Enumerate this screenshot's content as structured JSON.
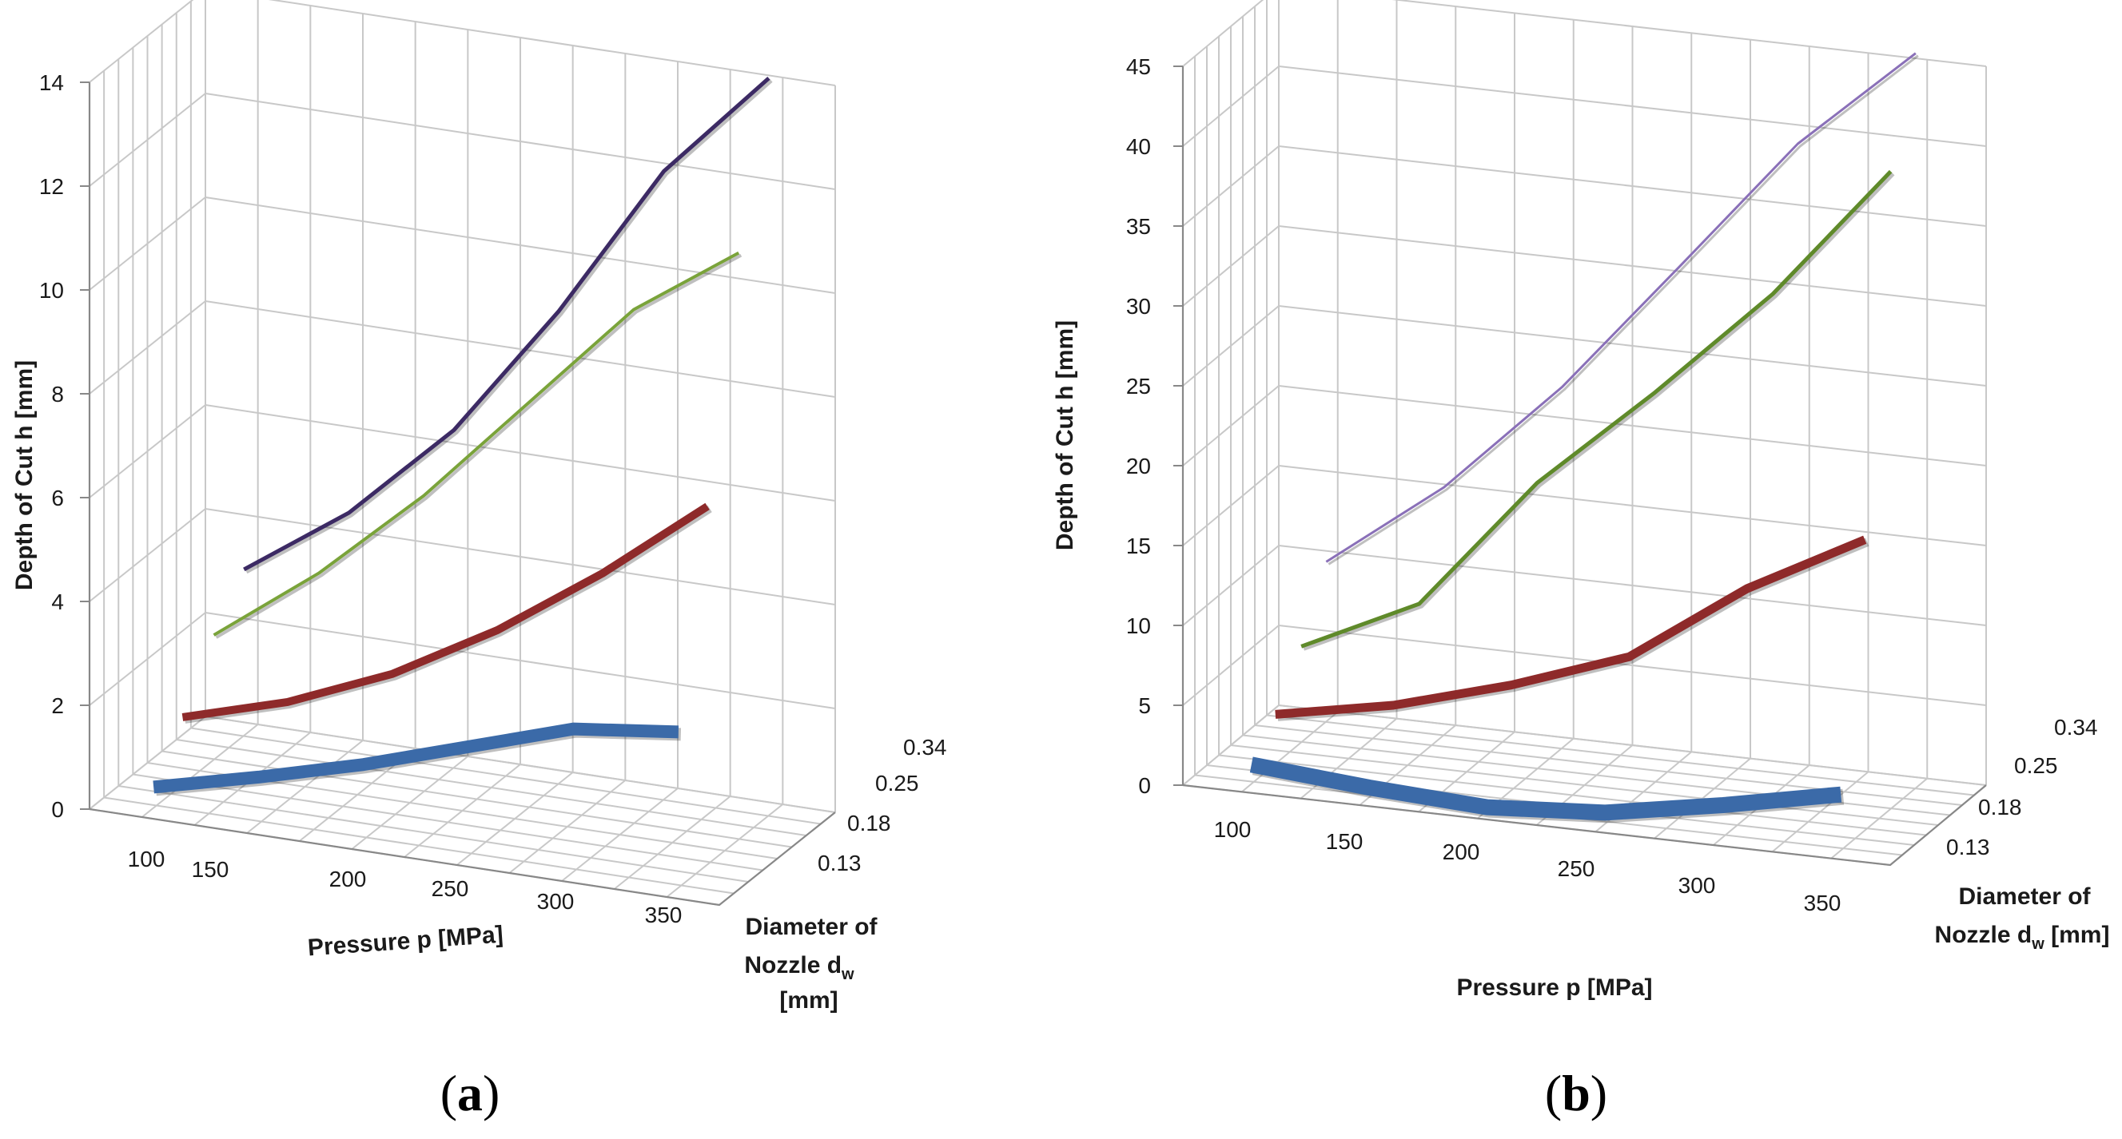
{
  "panels": [
    {
      "label_open": "(",
      "label": "a",
      "label_close": ")"
    },
    {
      "label_open": "(",
      "label": "b",
      "label_close": ")"
    }
  ],
  "chart_data": [
    {
      "type": "line3d",
      "panel": "a",
      "ylabel": "Depth of Cut h [mm]",
      "xlabel": "Pressure p [MPa]",
      "zlabel_line1": "Diameter of",
      "zlabel_line2_main": "Nozzle d",
      "zlabel_line2_sub": "w",
      "zlabel_line3": "[mm]",
      "x_categories": [
        "100",
        "150",
        "200",
        "250",
        "300",
        "350"
      ],
      "z_categories": [
        "0.13",
        "0.18",
        "0.25",
        "0.34"
      ],
      "y_ticks": [
        "0",
        "2",
        "4",
        "6",
        "8",
        "10",
        "12",
        "14"
      ],
      "ylim": [
        0,
        14
      ],
      "series": [
        {
          "name": "0.13",
          "color": "#3b6aa8",
          "width": 16,
          "values": [
            0.4,
            0.9,
            1.45,
            2.1,
            2.75,
            3.0
          ]
        },
        {
          "name": "0.18",
          "color": "#8e2a2a",
          "width": 10,
          "values": [
            1.3,
            1.9,
            2.75,
            3.9,
            5.3,
            6.9
          ]
        },
        {
          "name": "0.25",
          "color": "#7aa33a",
          "width": 4,
          "values": [
            2.4,
            3.9,
            5.7,
            7.8,
            9.9,
            11.3
          ]
        },
        {
          "name": "0.34",
          "color": "#3c2a64",
          "width": 5,
          "values": [
            3.2,
            4.6,
            6.5,
            9.1,
            12.1,
            14.2
          ]
        }
      ]
    },
    {
      "type": "line3d",
      "panel": "b",
      "ylabel": "Depth of Cut h [mm]",
      "xlabel": "Pressure p [MPa]",
      "zlabel_line1": "Diameter of",
      "zlabel_line2_main": "Nozzle d",
      "zlabel_line2_sub": "w",
      "zlabel_line2_tail": " [mm]",
      "x_categories": [
        "100",
        "150",
        "200",
        "250",
        "300",
        "350"
      ],
      "z_categories": [
        "0.13",
        "0.18",
        "0.25",
        "0.34"
      ],
      "y_ticks": [
        "0",
        "5",
        "10",
        "15",
        "20",
        "25",
        "30",
        "35",
        "40",
        "45"
      ],
      "ylim": [
        0,
        45
      ],
      "series": [
        {
          "name": "0.13",
          "color": "#3b6aa8",
          "width": 20,
          "values": [
            1.2,
            0.6,
            0.2,
            0.7,
            2.0,
            3.5
          ]
        },
        {
          "name": "0.18",
          "color": "#8e2a2a",
          "width": 11,
          "values": [
            3.1,
            4.5,
            6.6,
            9.2,
            14.3,
            18.2
          ]
        },
        {
          "name": "0.25",
          "color": "#5f8a2a",
          "width": 5,
          "values": [
            6.0,
            9.5,
            17.9,
            24.4,
            31.4,
            39.9
          ]
        },
        {
          "name": "0.34",
          "color": "#8a70b8",
          "width": 3,
          "values": [
            10.0,
            15.5,
            22.6,
            31.0,
            39.5,
            46.0
          ]
        }
      ]
    }
  ]
}
